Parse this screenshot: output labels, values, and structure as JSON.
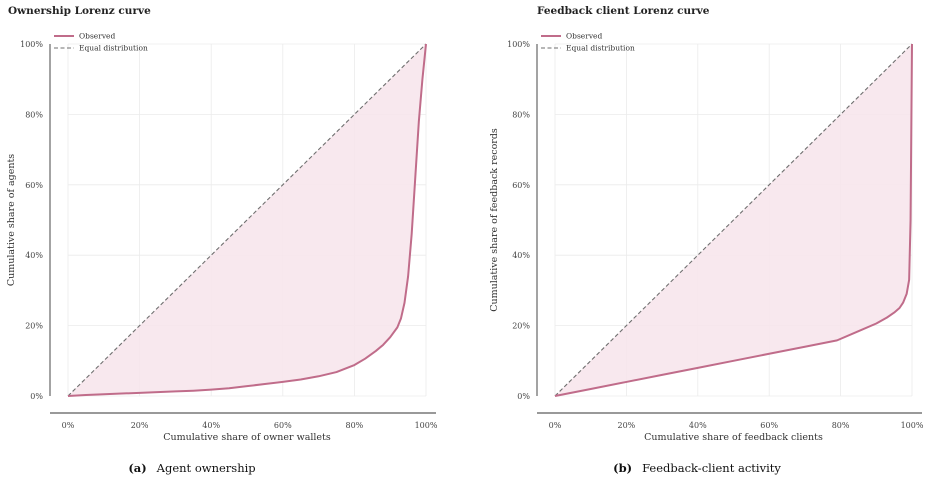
{
  "colors": {
    "observed": "#c06c8a",
    "fill": "#f7e6ec",
    "equal": "#6f6f6f"
  },
  "chart_data": [
    {
      "type": "line",
      "title": "Ownership Lorenz curve",
      "xlabel": "Cumulative share of owner wallets",
      "ylabel": "Cumulative share of agents",
      "xlim": [
        0,
        100
      ],
      "ylim": [
        0,
        100
      ],
      "x_ticks": [
        "0%",
        "20%",
        "40%",
        "60%",
        "80%",
        "100%"
      ],
      "y_ticks": [
        "0%",
        "20%",
        "40%",
        "60%",
        "80%",
        "100%"
      ],
      "grid": true,
      "legend_position": "top-left",
      "series": [
        {
          "name": "Observed",
          "x": [
            0,
            5,
            10,
            15,
            20,
            25,
            30,
            35,
            40,
            45,
            50,
            55,
            60,
            65,
            70,
            75,
            80,
            83,
            86,
            88,
            90,
            92,
            93,
            94,
            95,
            96,
            97,
            98,
            99,
            100
          ],
          "y": [
            0,
            0.3,
            0.5,
            0.7,
            0.9,
            1.1,
            1.3,
            1.5,
            1.8,
            2.2,
            2.8,
            3.4,
            4.0,
            4.7,
            5.6,
            6.8,
            8.8,
            10.6,
            12.8,
            14.5,
            16.7,
            19.5,
            22.0,
            26.5,
            34.0,
            46.0,
            62.0,
            78.0,
            90.0,
            100
          ]
        },
        {
          "name": "Equal distribution",
          "x": [
            0,
            100
          ],
          "y": [
            0,
            100
          ]
        }
      ],
      "caption_label": "(a)",
      "caption_text": "Agent ownership"
    },
    {
      "type": "line",
      "title": "Feedback client Lorenz curve",
      "xlabel": "Cumulative share of feedback clients",
      "ylabel": "Cumulative share of feedback records",
      "xlim": [
        0,
        100
      ],
      "ylim": [
        0,
        100
      ],
      "x_ticks": [
        "0%",
        "20%",
        "40%",
        "60%",
        "80%",
        "100%"
      ],
      "y_ticks": [
        "0%",
        "20%",
        "40%",
        "60%",
        "80%",
        "100%"
      ],
      "grid": true,
      "legend_position": "top-left",
      "series": [
        {
          "name": "Observed",
          "x": [
            0,
            10,
            20,
            30,
            40,
            50,
            60,
            70,
            79,
            85,
            90,
            93,
            95,
            96.5,
            97.5,
            98.5,
            99.2,
            99.6,
            99.8,
            100
          ],
          "y": [
            0,
            2.0,
            4.0,
            6.0,
            8.0,
            10.0,
            12.0,
            14.0,
            15.8,
            18.4,
            20.6,
            22.3,
            23.7,
            25.0,
            26.5,
            29.0,
            33.0,
            50.0,
            75.0,
            100
          ]
        },
        {
          "name": "Equal distribution",
          "x": [
            0,
            100
          ],
          "y": [
            0,
            100
          ]
        }
      ],
      "caption_label": "(b)",
      "caption_text": "Feedback-client activity"
    }
  ]
}
